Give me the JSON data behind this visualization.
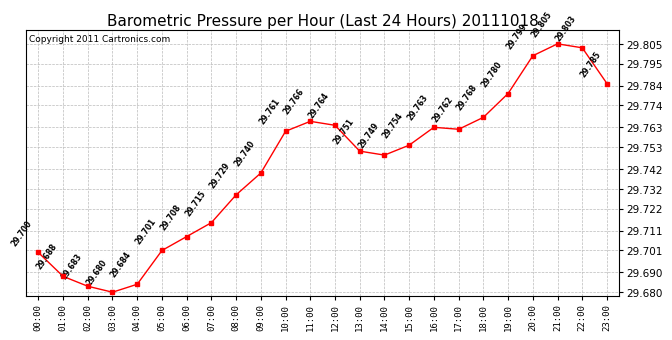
{
  "title": "Barometric Pressure per Hour (Last 24 Hours) 20111018",
  "copyright": "Copyright 2011 Cartronics.com",
  "hours": [
    "00:00",
    "01:00",
    "02:00",
    "03:00",
    "04:00",
    "05:00",
    "06:00",
    "07:00",
    "08:00",
    "09:00",
    "10:00",
    "11:00",
    "12:00",
    "13:00",
    "14:00",
    "15:00",
    "16:00",
    "17:00",
    "18:00",
    "19:00",
    "20:00",
    "21:00",
    "22:00",
    "23:00"
  ],
  "values": [
    29.7,
    29.688,
    29.683,
    29.68,
    29.684,
    29.701,
    29.708,
    29.715,
    29.729,
    29.74,
    29.761,
    29.766,
    29.764,
    29.751,
    29.749,
    29.754,
    29.763,
    29.762,
    29.768,
    29.78,
    29.799,
    29.805,
    29.803,
    29.785
  ],
  "ylim_min": 29.678,
  "ylim_max": 29.812,
  "yticks": [
    29.68,
    29.69,
    29.701,
    29.711,
    29.722,
    29.732,
    29.742,
    29.753,
    29.763,
    29.774,
    29.784,
    29.795,
    29.805
  ],
  "line_color": "red",
  "marker_color": "red",
  "bg_color": "white",
  "grid_color": "#bbbbbb",
  "title_fontsize": 11,
  "copyright_fontsize": 6.5,
  "label_fontsize": 5.5,
  "tick_fontsize": 6.5,
  "ytick_fontsize": 7.5
}
